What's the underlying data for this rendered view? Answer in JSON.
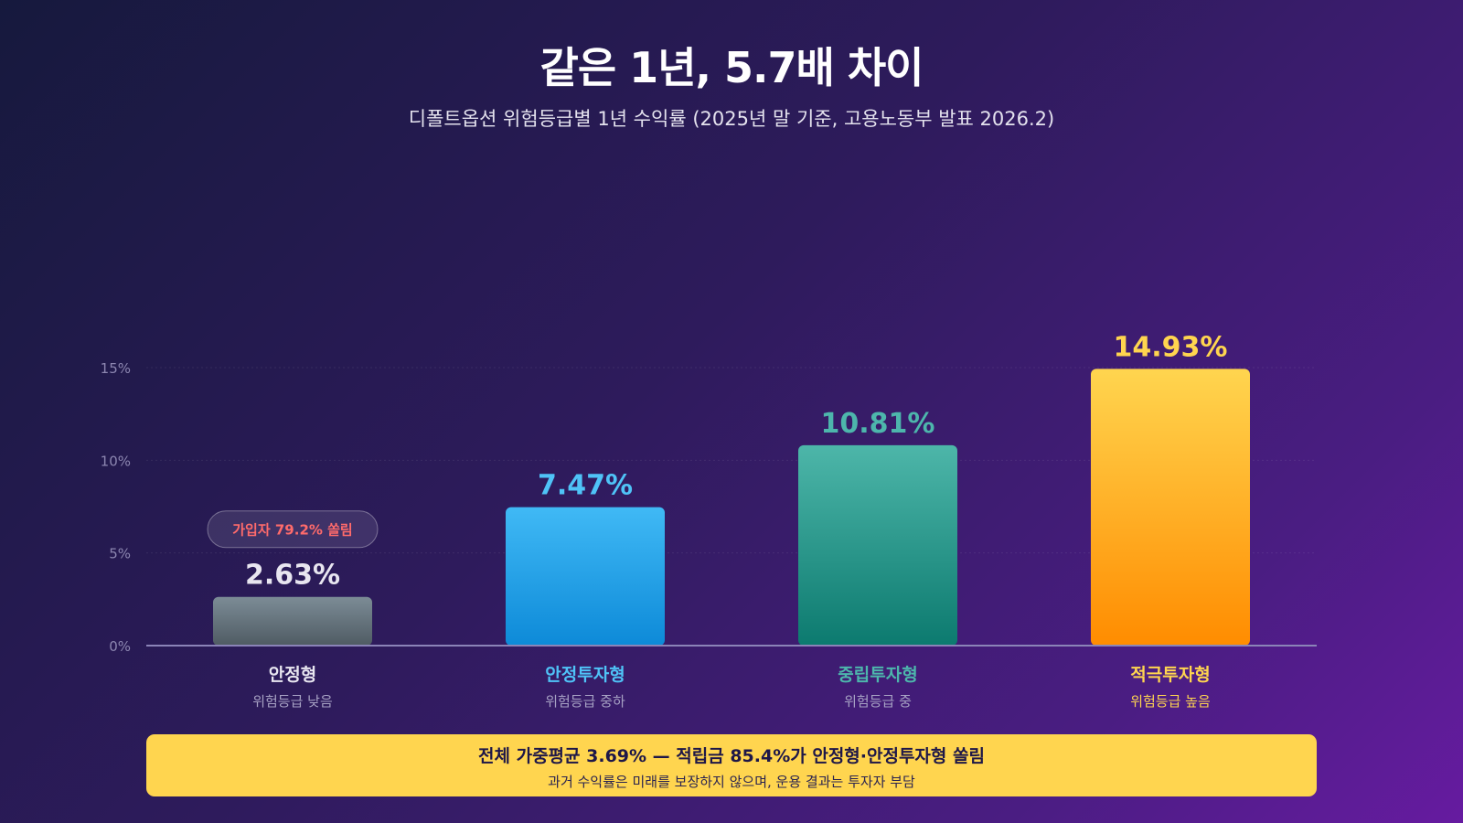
{
  "title": "같은 1년, 5.7배 차이",
  "subtitle": "디폴트옵션 위험등급별 1년 수익률 (2025년 말 기준, 고용노동부 발표 2026.2)",
  "chart_data": {
    "type": "bar",
    "categories": [
      "안정형",
      "안정투자형",
      "중립투자형",
      "적극투자형"
    ],
    "sublabels": [
      "위험등급 낮음",
      "위험등급 중하",
      "위험등급 중",
      "위험등급 높음"
    ],
    "values": [
      2.63,
      7.47,
      10.81,
      14.93
    ],
    "value_labels": [
      "2.63%",
      "7.47%",
      "10.81%",
      "14.93%"
    ],
    "yticks": [
      0,
      5,
      10,
      15
    ],
    "ytick_labels": [
      "0%",
      "5%",
      "10%",
      "15%"
    ],
    "ylim": [
      0,
      15
    ],
    "grid": true,
    "bar_colors": [
      [
        "#7c8c96",
        "#4f5b63"
      ],
      [
        "#40b9f5",
        "#0d8ad8"
      ],
      [
        "#4db6a9",
        "#0c7a6f"
      ],
      [
        "#ffd54f",
        "#ff8c00"
      ]
    ],
    "label_colors": [
      "#e8e6f0",
      "#4fc3f7",
      "#4db6ac",
      "#ffd54f"
    ],
    "annotation": {
      "bar_index": 0,
      "text": "가입자 79.2% 쏠림",
      "color": "#ff6b6b"
    }
  },
  "footer": {
    "main": "전체 가중평균 3.69% — 적립금 85.4%가 안정형·안정투자형 쏠림",
    "note": "과거 수익률은 미래를 보장하지 않으며, 운용 결과는 투자자 부담"
  }
}
